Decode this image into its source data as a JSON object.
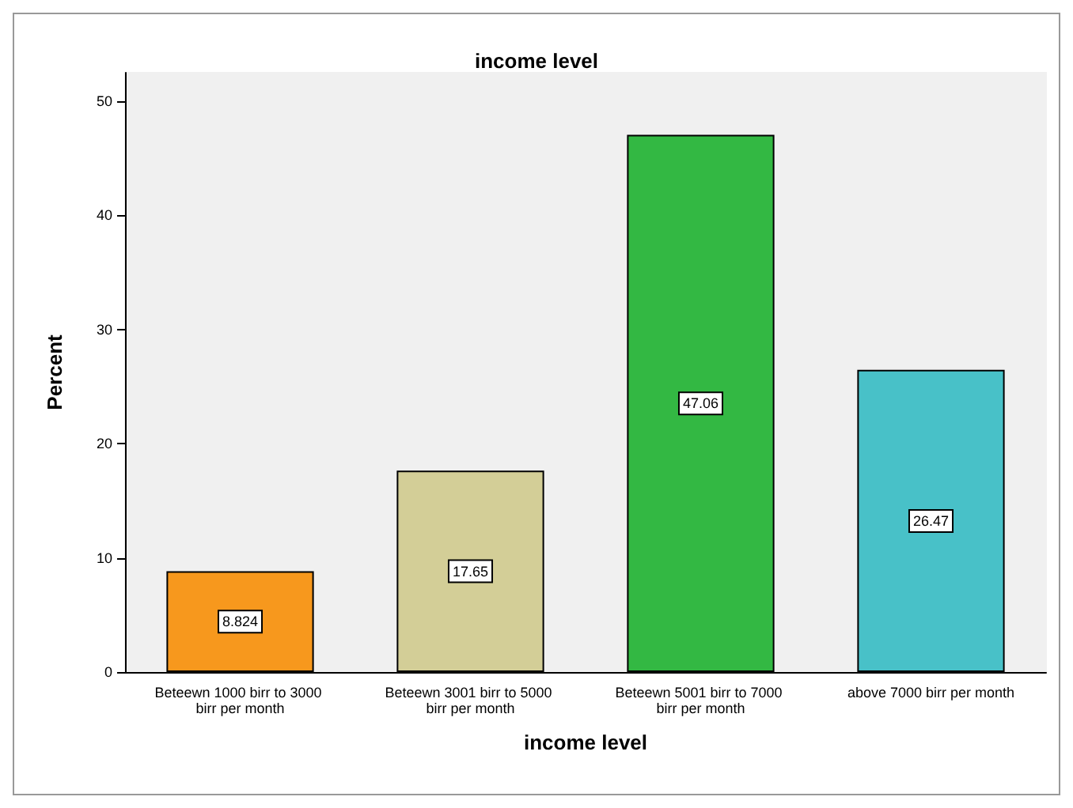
{
  "chart_data": {
    "type": "bar",
    "title": "income level",
    "xlabel": "income level",
    "ylabel": "Percent",
    "categories": [
      "Beteewn 1000 birr to 3000 birr per month",
      "Beteewn 3001 birr to 5000 birr per month",
      "Beteewn 5001 birr to 7000 birr per month",
      "above 7000 birr per month"
    ],
    "values": [
      8.824,
      17.65,
      47.06,
      26.47
    ],
    "colors": [
      "#f7981d",
      "#d3ce97",
      "#33b843",
      "#48c1c8"
    ],
    "ylim": [
      0,
      52.5
    ],
    "yticks": [
      0,
      10,
      20,
      30,
      40,
      50
    ],
    "grid": false,
    "data_labels": true
  }
}
